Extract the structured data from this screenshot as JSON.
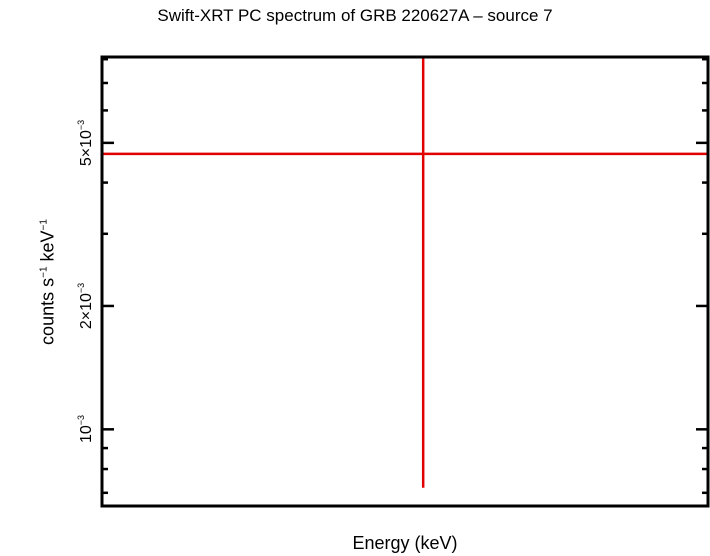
{
  "chart_data": {
    "type": "scatter",
    "title": "Swift-XRT PC spectrum of GRB 220627A – source 7",
    "xlabel": "Energy (keV)",
    "ylabel": {
      "prefix": "counts s",
      "exp1": "−1",
      "middle": " keV",
      "exp2": "−1"
    },
    "yscale": "log",
    "ylim": [
      0.00065,
      0.0081
    ],
    "ytick_labels": [
      {
        "value": 0.001,
        "mantissa": "",
        "exponent": "−3"
      },
      {
        "value": 0.002,
        "mantissa": "2×",
        "exponent": "−3"
      },
      {
        "value": 0.005,
        "mantissa": "5×",
        "exponent": "−3"
      }
    ],
    "series": [
      {
        "points": [
          {
            "x_frac": 0.53,
            "y": 0.0047,
            "y_low": 0.00072,
            "y_high": 0.0081
          }
        ]
      }
    ],
    "colors": {
      "frame": "#000000",
      "data": "#e00000"
    }
  }
}
